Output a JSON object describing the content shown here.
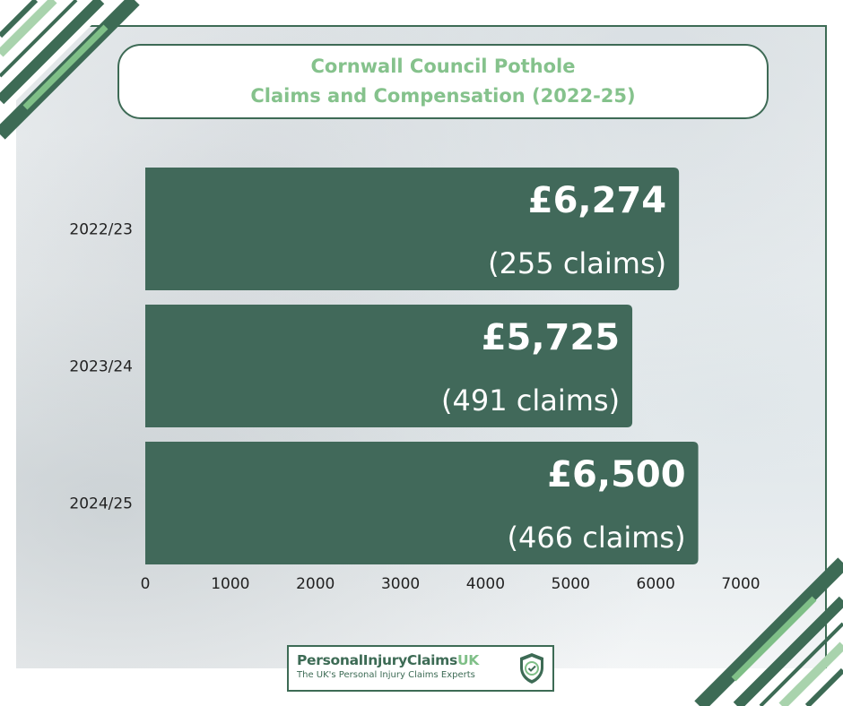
{
  "colors": {
    "bar": "#41695a",
    "title_text": "#85c28c",
    "border_green": "#3d6b55",
    "light_green": "#7fbf87"
  },
  "title": {
    "line1": "Cornwall Council Pothole",
    "line2": "Claims and Compensation (2022-25)"
  },
  "chart_data": {
    "type": "bar",
    "orientation": "horizontal",
    "categories": [
      "2022/23",
      "2023/24",
      "2024/25"
    ],
    "values": [
      6274,
      5725,
      6500
    ],
    "value_labels": [
      "£6,274",
      "£5,725",
      "£6,500"
    ],
    "claim_labels": [
      "(255 claims)",
      "(491 claims)",
      "(466 claims)"
    ],
    "claims": [
      255,
      491,
      466
    ],
    "xlim": [
      0,
      7000
    ],
    "xticks": [
      "0",
      "1000",
      "2000",
      "3000",
      "4000",
      "5000",
      "6000",
      "7000"
    ],
    "grid": false,
    "legend": "none"
  },
  "logo": {
    "name_part1": "PersonalInjuryClaims",
    "name_part2": "UK",
    "tagline": "The UK's Personal Injury Claims Experts",
    "icon": "shield-check-icon"
  }
}
